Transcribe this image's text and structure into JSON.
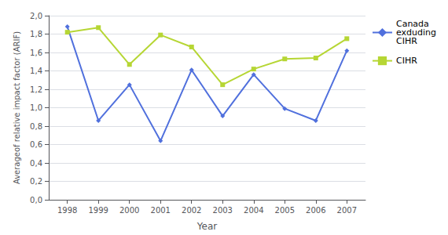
{
  "chart_data": {
    "type": "line",
    "x": [
      1998,
      1999,
      2000,
      2001,
      2002,
      2003,
      2004,
      2005,
      2006,
      2007
    ],
    "series": [
      {
        "name": "Canada\nexduding\nCIHR",
        "values": [
          1.88,
          0.86,
          1.25,
          0.64,
          1.41,
          0.91,
          1.36,
          0.99,
          0.86,
          1.62
        ],
        "marker": "diamond"
      },
      {
        "name": "CIHR",
        "values": [
          1.82,
          1.87,
          1.47,
          1.79,
          1.66,
          1.25,
          1.42,
          1.53,
          1.54,
          1.75
        ],
        "marker": "square"
      }
    ],
    "xlabel": "Year",
    "ylabel": "Averageof relative impact factor (ARIF)",
    "xlim": [
      1997.4,
      2007.6
    ],
    "xticks": [
      1998,
      1999,
      2000,
      2001,
      2002,
      2003,
      2004,
      2005,
      2006,
      2007
    ],
    "ylim": [
      0.0,
      2.0
    ],
    "yticks": [
      {
        "value": 0.0,
        "label": "0,0"
      },
      {
        "value": 0.2,
        "label": "0,2"
      },
      {
        "value": 0.4,
        "label": "0,4"
      },
      {
        "value": 0.6,
        "label": "0,6"
      },
      {
        "value": 0.8,
        "label": "0,8"
      },
      {
        "value": 1.0,
        "label": "1,0"
      },
      {
        "value": 1.2,
        "label": "1,2"
      },
      {
        "value": 1.4,
        "label": "1,4"
      },
      {
        "value": 1.6,
        "label": "1,6"
      },
      {
        "value": 1.8,
        "label": "1,8"
      },
      {
        "value": 2.0,
        "label": "2,0"
      }
    ],
    "grid": true,
    "legend": "right"
  }
}
